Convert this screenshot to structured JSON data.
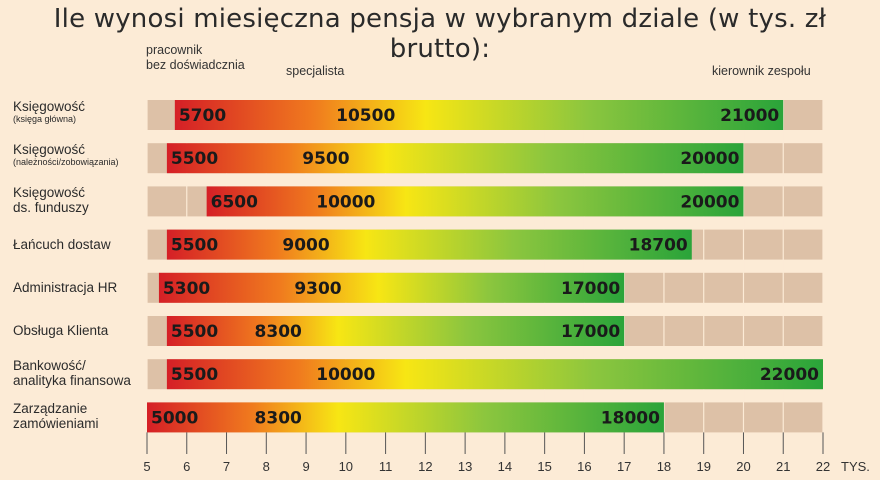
{
  "title": "Ile wynosi miesięczna pensja w wybranym dziale (w tys. zł brutto):",
  "headers": {
    "col1": [
      "pracownik",
      "bez doświadcznia"
    ],
    "col2": "specjalista",
    "col3": "kierownik zespołu"
  },
  "colors": {
    "background": "#fcebd6",
    "track": "#ddc1a7",
    "low": "#d51f26",
    "mid": "#f7e614",
    "high": "#2aa43a"
  },
  "rows": [
    {
      "label": "Księgowość",
      "sub": "(księga główna)"
    },
    {
      "label": "Księgowość",
      "sub": "(należności/zobowiązania)"
    },
    {
      "label": "Księgowość",
      "label2": "ds. funduszy"
    },
    {
      "label": "Łańcuch dostaw"
    },
    {
      "label": "Administracja HR"
    },
    {
      "label": "Obsługa Klienta"
    },
    {
      "label": "Bankowość/",
      "label2": "analityka finansowa"
    },
    {
      "label": "Zarządzanie",
      "label2": "zamówieniami"
    }
  ],
  "chart_data": {
    "type": "bar",
    "categories": [
      "Księgowość (księga główna)",
      "Księgowość (należności/zobowiązania)",
      "Księgowość ds. funduszy",
      "Łańcuch dostaw",
      "Administracja HR",
      "Obsługa Klienta",
      "Bankowość/ analityka finansowa",
      "Zarządzanie zamówieniami"
    ],
    "series": [
      {
        "name": "pracownik bez doświadcznia",
        "values": [
          5700,
          5500,
          6500,
          5500,
          5300,
          5500,
          5500,
          5000
        ]
      },
      {
        "name": "specjalista",
        "values": [
          10500,
          9500,
          10000,
          9000,
          9300,
          8300,
          10000,
          8300
        ]
      },
      {
        "name": "kierownik zespołu",
        "values": [
          21000,
          20000,
          20000,
          18700,
          17000,
          17000,
          22000,
          18000
        ]
      }
    ],
    "xticks": [
      "5",
      "6",
      "7",
      "8",
      "9",
      "10",
      "11",
      "12",
      "13",
      "14",
      "15",
      "16",
      "17",
      "18",
      "19",
      "20",
      "21",
      "22"
    ],
    "xunit": "TYS.",
    "xlim": [
      5,
      22
    ]
  }
}
